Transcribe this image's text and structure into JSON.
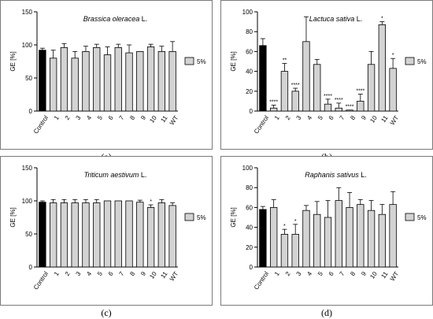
{
  "chart_data": [
    {
      "type": "bar",
      "panel_label": "(a)",
      "title_italic": "Brassica oleracea",
      "title_suffix": " L.",
      "ylabel": "GE [%]",
      "ylim": [
        0,
        150
      ],
      "yticks": [
        0,
        50,
        100,
        150
      ],
      "categories": [
        "Control",
        "1",
        "2",
        "3",
        "4",
        "5",
        "6",
        "7",
        "8",
        "9",
        "10",
        "11",
        "WT"
      ],
      "values": [
        92,
        80,
        96,
        80,
        90,
        96,
        85,
        96,
        88,
        90,
        97,
        90,
        90
      ],
      "errors": [
        3,
        12,
        6,
        10,
        8,
        5,
        12,
        5,
        12,
        0,
        4,
        8,
        15
      ],
      "significance": [
        "",
        "",
        "",
        "",
        "",
        "",
        "",
        "",
        "",
        "",
        "",
        "",
        ""
      ],
      "legend": "5%",
      "colors": {
        "control": "#000000",
        "treatment": "#d3d3d3"
      }
    },
    {
      "type": "bar",
      "panel_label": "(b)",
      "title_italic": "Lactuca sativa",
      "title_suffix": " L.",
      "ylabel": "GE [%]",
      "ylim": [
        0,
        100
      ],
      "yticks": [
        0,
        20,
        40,
        60,
        80,
        100
      ],
      "categories": [
        "Control",
        "1",
        "2",
        "3",
        "4",
        "5",
        "6",
        "7",
        "8",
        "9",
        "10",
        "11",
        "WT"
      ],
      "values": [
        66,
        3,
        40,
        20,
        70,
        47,
        7,
        3,
        1,
        10,
        47,
        87,
        43
      ],
      "errors": [
        7,
        3,
        8,
        3,
        25,
        5,
        5,
        5,
        0,
        7,
        13,
        3,
        10
      ],
      "significance": [
        "",
        "****",
        "**",
        "****",
        "",
        "",
        "****",
        "****",
        "****",
        "****",
        "",
        "*",
        "*"
      ],
      "legend": "5%",
      "colors": {
        "control": "#000000",
        "treatment": "#d3d3d3"
      }
    },
    {
      "type": "bar",
      "panel_label": "(c)",
      "title_italic": "Triticum aestivum",
      "title_suffix": " L.",
      "ylabel": "GE [%]",
      "ylim": [
        0,
        150
      ],
      "yticks": [
        0,
        50,
        100,
        150
      ],
      "categories": [
        "Control",
        "1",
        "2",
        "3",
        "4",
        "5",
        "6",
        "7",
        "8",
        "9",
        "10",
        "11",
        "WT"
      ],
      "values": [
        98,
        97,
        97,
        97,
        97,
        97,
        100,
        100,
        100,
        98,
        90,
        97,
        93
      ],
      "errors": [
        2,
        5,
        5,
        5,
        5,
        5,
        0,
        0,
        0,
        3,
        4,
        5,
        4
      ],
      "significance": [
        "",
        "",
        "",
        "",
        "",
        "",
        "",
        "",
        "",
        "",
        "*",
        "",
        ""
      ],
      "legend": "5%",
      "colors": {
        "control": "#000000",
        "treatment": "#d3d3d3"
      }
    },
    {
      "type": "bar",
      "panel_label": "(d)",
      "title_italic": "Raphanis sativus",
      "title_suffix": " L.",
      "ylabel": "GE [%]",
      "ylim": [
        0,
        100
      ],
      "yticks": [
        0,
        20,
        40,
        60,
        80,
        100
      ],
      "categories": [
        "Control",
        "1",
        "2",
        "3",
        "4",
        "5",
        "6",
        "7",
        "8",
        "9",
        "10",
        "11",
        "WT"
      ],
      "values": [
        58,
        60,
        33,
        33,
        57,
        53,
        50,
        67,
        60,
        63,
        57,
        53,
        63
      ],
      "errors": [
        3,
        8,
        5,
        10,
        5,
        13,
        17,
        13,
        15,
        5,
        10,
        10,
        13
      ],
      "significance": [
        "",
        "",
        "*",
        "*",
        "",
        "",
        "",
        "",
        "",
        "",
        "",
        "",
        ""
      ],
      "legend": "5%",
      "colors": {
        "control": "#000000",
        "treatment": "#d3d3d3"
      }
    }
  ]
}
